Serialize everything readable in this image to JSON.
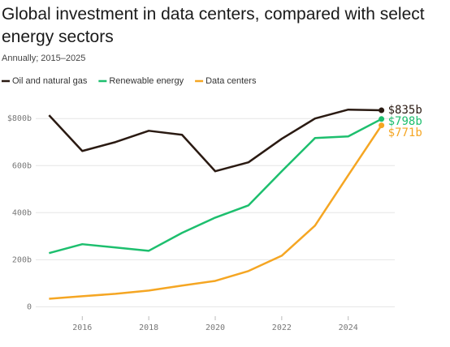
{
  "chart_data": {
    "type": "line",
    "title": "Global investment in data centers, compared with select energy sectors",
    "subtitle": "Annually; 2015–2025",
    "x": [
      2015,
      2016,
      2017,
      2018,
      2019,
      2020,
      2021,
      2022,
      2023,
      2024,
      2025
    ],
    "xlim": [
      2014.6,
      2025.4
    ],
    "xticks": [
      2016,
      2018,
      2020,
      2022,
      2024
    ],
    "ylim": [
      -40,
      880
    ],
    "yticks": [
      0,
      {
        "value": 200,
        "label": "200b"
      },
      {
        "value": 400,
        "label": "400b"
      },
      {
        "value": 600,
        "label": "600b"
      },
      {
        "value": 800,
        "label": "$800b"
      }
    ],
    "grid": true,
    "series": [
      {
        "name": "Oil and natural gas",
        "color": "#2a1a12",
        "values": [
          814,
          662,
          700,
          748,
          731,
          576,
          614,
          714,
          800,
          838,
          835
        ],
        "value_labels": [
          null,
          null,
          null,
          null,
          null,
          null,
          null,
          null,
          null,
          null,
          "$835b"
        ]
      },
      {
        "name": "Renewable energy",
        "color": "#1dbf6e",
        "values": [
          228,
          266,
          252,
          238,
          314,
          379,
          431,
          576,
          717,
          724,
          798
        ],
        "value_labels": [
          null,
          null,
          null,
          null,
          null,
          null,
          null,
          null,
          null,
          null,
          "$798b"
        ]
      },
      {
        "name": "Data centers",
        "color": "#f5a623",
        "values": [
          34,
          45,
          55,
          69,
          90,
          110,
          152,
          217,
          345,
          559,
          771
        ],
        "value_labels": [
          null,
          null,
          null,
          null,
          null,
          null,
          null,
          null,
          null,
          null,
          "$771b"
        ]
      }
    ]
  }
}
